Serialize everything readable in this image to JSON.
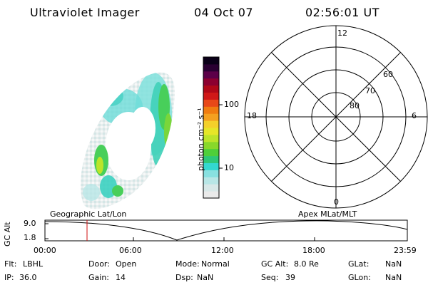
{
  "header": {
    "instrument": "Ultraviolet Imager",
    "date": "04 Oct 07",
    "time": "02:56:01 UT"
  },
  "colorbar": {
    "unit_label": "photon cm⁻² s⁻¹",
    "ticks": [
      "100",
      "10"
    ],
    "colors": [
      "#eaeaea",
      "#d8e8e8",
      "#b8e6e6",
      "#88e0e0",
      "#33d8d0",
      "#2ec878",
      "#4fcf3a",
      "#88d82a",
      "#bce42a",
      "#e6e628",
      "#f4d02a",
      "#f4a020",
      "#f07c10",
      "#e84818",
      "#d01818",
      "#b00818",
      "#8c0030",
      "#5c0048",
      "#2a0032",
      "#0a0018"
    ]
  },
  "polar": {
    "labels": {
      "top": "12",
      "left": "18",
      "right": "6",
      "bottom": "0"
    },
    "rings": [
      "60",
      "70",
      "80"
    ]
  },
  "timeline": {
    "left_title": "Geographic Lat/Lon",
    "right_title": "Apex MLat/MLT",
    "y_axis_label": "GC Alt",
    "y_ticks": [
      "9.0",
      "1.8"
    ],
    "x_ticks": [
      "00:00",
      "06:00",
      "12:00",
      "18:00",
      "23:59"
    ],
    "marker_time": "02:56",
    "marker_color": "#d01010"
  },
  "footer": {
    "row1": [
      {
        "label": "Flt:",
        "value": "LBHL"
      },
      {
        "label": "Door:",
        "value": "Open"
      },
      {
        "label": "Mode:",
        "value": "Normal"
      },
      {
        "label": "GC Alt:",
        "value": "8.0 Re"
      },
      {
        "label": "GLat:",
        "value": "NaN"
      }
    ],
    "row2": [
      {
        "label": "IP:",
        "value": "36.0"
      },
      {
        "label": "Gain:",
        "value": "14"
      },
      {
        "label": "Dsp:",
        "value": "NaN"
      },
      {
        "label": "Seq:",
        "value": "39"
      },
      {
        "label": "GLon:",
        "value": "NaN"
      }
    ]
  }
}
